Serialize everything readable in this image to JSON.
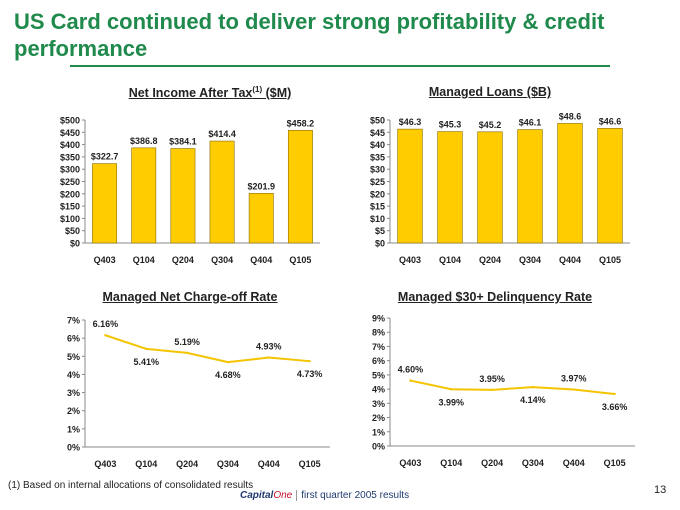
{
  "title": "US Card continued to deliver strong profitability & credit performance",
  "footnote": "(1) Based on internal allocations of consolidated results",
  "page_number": "13",
  "logo": {
    "brand": "Capital",
    "brand_accent": "One",
    "subtitle": "first quarter 2005 results"
  },
  "colors": {
    "title": "#1f8a4c",
    "bar": "#ffcc00",
    "bar_edge": "#8a6d00",
    "line": "#f5c400"
  },
  "chart_data": [
    {
      "type": "bar",
      "title": "Net Income After Tax",
      "title_sup": "(1)",
      "title_unit": " ($M)",
      "categories": [
        "Q403",
        "Q104",
        "Q204",
        "Q304",
        "Q404",
        "Q105"
      ],
      "values": [
        322.7,
        386.8,
        384.1,
        414.4,
        201.9,
        458.2
      ],
      "value_labels": [
        "$322.7",
        "$386.8",
        "$384.1",
        "$414.4",
        "$201.9",
        "$458.2"
      ],
      "yticks": [
        0,
        50,
        100,
        150,
        200,
        250,
        300,
        350,
        400,
        450,
        500
      ],
      "ytick_labels": [
        "$0",
        "$50",
        "$100",
        "$150",
        "$200",
        "$250",
        "$300",
        "$350",
        "$400",
        "$450",
        "$500"
      ],
      "ylim": [
        0,
        500
      ]
    },
    {
      "type": "bar",
      "title": "Managed Loans ($B)",
      "categories": [
        "Q403",
        "Q104",
        "Q204",
        "Q304",
        "Q404",
        "Q105"
      ],
      "values": [
        46.3,
        45.3,
        45.2,
        46.1,
        48.6,
        46.6
      ],
      "value_labels": [
        "$46.3",
        "$45.3",
        "$45.2",
        "$46.1",
        "$48.6",
        "$46.6"
      ],
      "yticks": [
        0,
        5,
        10,
        15,
        20,
        25,
        30,
        35,
        40,
        45,
        50
      ],
      "ytick_labels": [
        "$0",
        "$5",
        "$10",
        "$15",
        "$20",
        "$25",
        "$30",
        "$35",
        "$40",
        "$45",
        "$50"
      ],
      "ylim": [
        0,
        50
      ]
    },
    {
      "type": "line",
      "title": "Managed Net Charge-off Rate",
      "categories": [
        "Q403",
        "Q104",
        "Q204",
        "Q304",
        "Q404",
        "Q105"
      ],
      "values": [
        6.16,
        5.41,
        5.19,
        4.68,
        4.93,
        4.73
      ],
      "value_labels": [
        "6.16%",
        "5.41%",
        "5.19%",
        "4.68%",
        "4.93%",
        "4.73%"
      ],
      "label_pos": [
        "above",
        "below",
        "above",
        "below",
        "above",
        "below"
      ],
      "yticks": [
        0,
        1,
        2,
        3,
        4,
        5,
        6,
        7
      ],
      "ytick_labels": [
        "0%",
        "1%",
        "2%",
        "3%",
        "4%",
        "5%",
        "6%",
        "7%"
      ],
      "ylim": [
        0,
        7
      ]
    },
    {
      "type": "line",
      "title": "Managed $30+ Delinquency Rate",
      "categories": [
        "Q403",
        "Q104",
        "Q204",
        "Q304",
        "Q404",
        "Q105"
      ],
      "values": [
        4.6,
        3.99,
        3.95,
        4.14,
        3.97,
        3.66
      ],
      "value_labels": [
        "4.60%",
        "3.99%",
        "3.95%",
        "4.14%",
        "3.97%",
        "3.66%"
      ],
      "label_pos": [
        "above",
        "below",
        "above",
        "below",
        "above",
        "below"
      ],
      "yticks": [
        0,
        1,
        2,
        3,
        4,
        5,
        6,
        7,
        8,
        9
      ],
      "ytick_labels": [
        "0%",
        "1%",
        "2%",
        "3%",
        "4%",
        "5%",
        "6%",
        "7%",
        "8%",
        "9%"
      ],
      "ylim": [
        0,
        9
      ]
    }
  ]
}
